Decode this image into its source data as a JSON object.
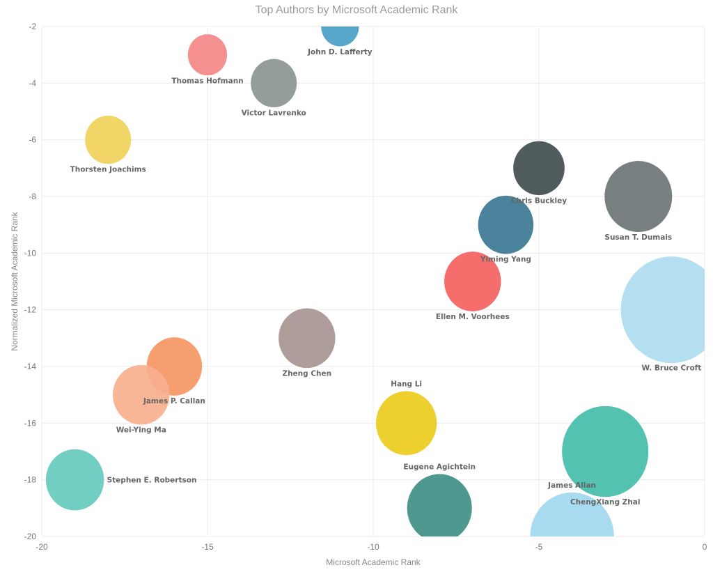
{
  "chart_data": {
    "type": "scatter",
    "variant": "bubble",
    "title": "Top Authors by Microsoft Academic Rank",
    "xlabel": "Microsoft Academic Rank",
    "ylabel": "Normalized Microsoft Academic Rank",
    "xlim": [
      -20,
      0
    ],
    "ylim": [
      -20,
      -2
    ],
    "xticks": [
      -20,
      -15,
      -10,
      -5,
      0
    ],
    "yticks": [
      -2,
      -4,
      -6,
      -8,
      -10,
      -12,
      -14,
      -16,
      -18,
      -20
    ],
    "grid": true,
    "legend": "none",
    "points": [
      {
        "name": "John D. Lafferty",
        "x": -11,
        "y": -2,
        "size": 28,
        "color": "#4a9ec4",
        "label_pos": "below"
      },
      {
        "name": "Thomas Hofmann",
        "x": -15,
        "y": -3,
        "size": 29,
        "color": "#f48788",
        "label_pos": "below"
      },
      {
        "name": "Victor Lavrenko",
        "x": -13,
        "y": -4,
        "size": 34,
        "color": "#8c9494",
        "label_pos": "below"
      },
      {
        "name": "Thorsten Joachims",
        "x": -18,
        "y": -6,
        "size": 34,
        "color": "#f0d35a",
        "label_pos": "below"
      },
      {
        "name": "Chris Buckley",
        "x": -5,
        "y": -7,
        "size": 38,
        "color": "#414d4f",
        "label_pos": "below"
      },
      {
        "name": "Susan T. Dumais",
        "x": -2,
        "y": -8,
        "size": 50,
        "color": "#6b7476",
        "label_pos": "below"
      },
      {
        "name": "Yiming Yang",
        "x": -6,
        "y": -9,
        "size": 41,
        "color": "#3b7893",
        "label_pos": "below"
      },
      {
        "name": "Ellen M. Voorhees",
        "x": -7,
        "y": -11,
        "size": 42,
        "color": "#f4625e",
        "label_pos": "below"
      },
      {
        "name": "W. Bruce Croft",
        "x": -1,
        "y": -12,
        "size": 75,
        "color": "#aedcf0",
        "label_pos": "below"
      },
      {
        "name": "Zheng Chen",
        "x": -12,
        "y": -13,
        "size": 42,
        "color": "#a89593",
        "label_pos": "below"
      },
      {
        "name": "James P. Callan",
        "x": -16,
        "y": -14,
        "size": 41,
        "color": "#f59663",
        "label_pos": "below"
      },
      {
        "name": "Wei-Ying Ma",
        "x": -17,
        "y": -15,
        "size": 42,
        "color": "#f7b08e",
        "label_pos": "below"
      },
      {
        "name": "Hang Li",
        "x": -9,
        "y": -16,
        "size": 45,
        "color": "#eccb1c",
        "label_pos": "above"
      },
      {
        "name": "ChengXiang Zhai",
        "x": -3,
        "y": -17,
        "size": 64,
        "color": "#45bdaa",
        "label_pos": "below"
      },
      {
        "name": "Stephen E. Robertson",
        "x": -19,
        "y": -18,
        "size": 43,
        "color": "#66c9bd",
        "label_pos": "right"
      },
      {
        "name": "Eugene Agichtein",
        "x": -8,
        "y": -19,
        "size": 48,
        "color": "#3f8f86",
        "label_pos": "above"
      },
      {
        "name": "James Allan",
        "x": -4,
        "y": -20,
        "size": 62,
        "color": "#a1d8ee",
        "label_pos": "above"
      }
    ]
  }
}
